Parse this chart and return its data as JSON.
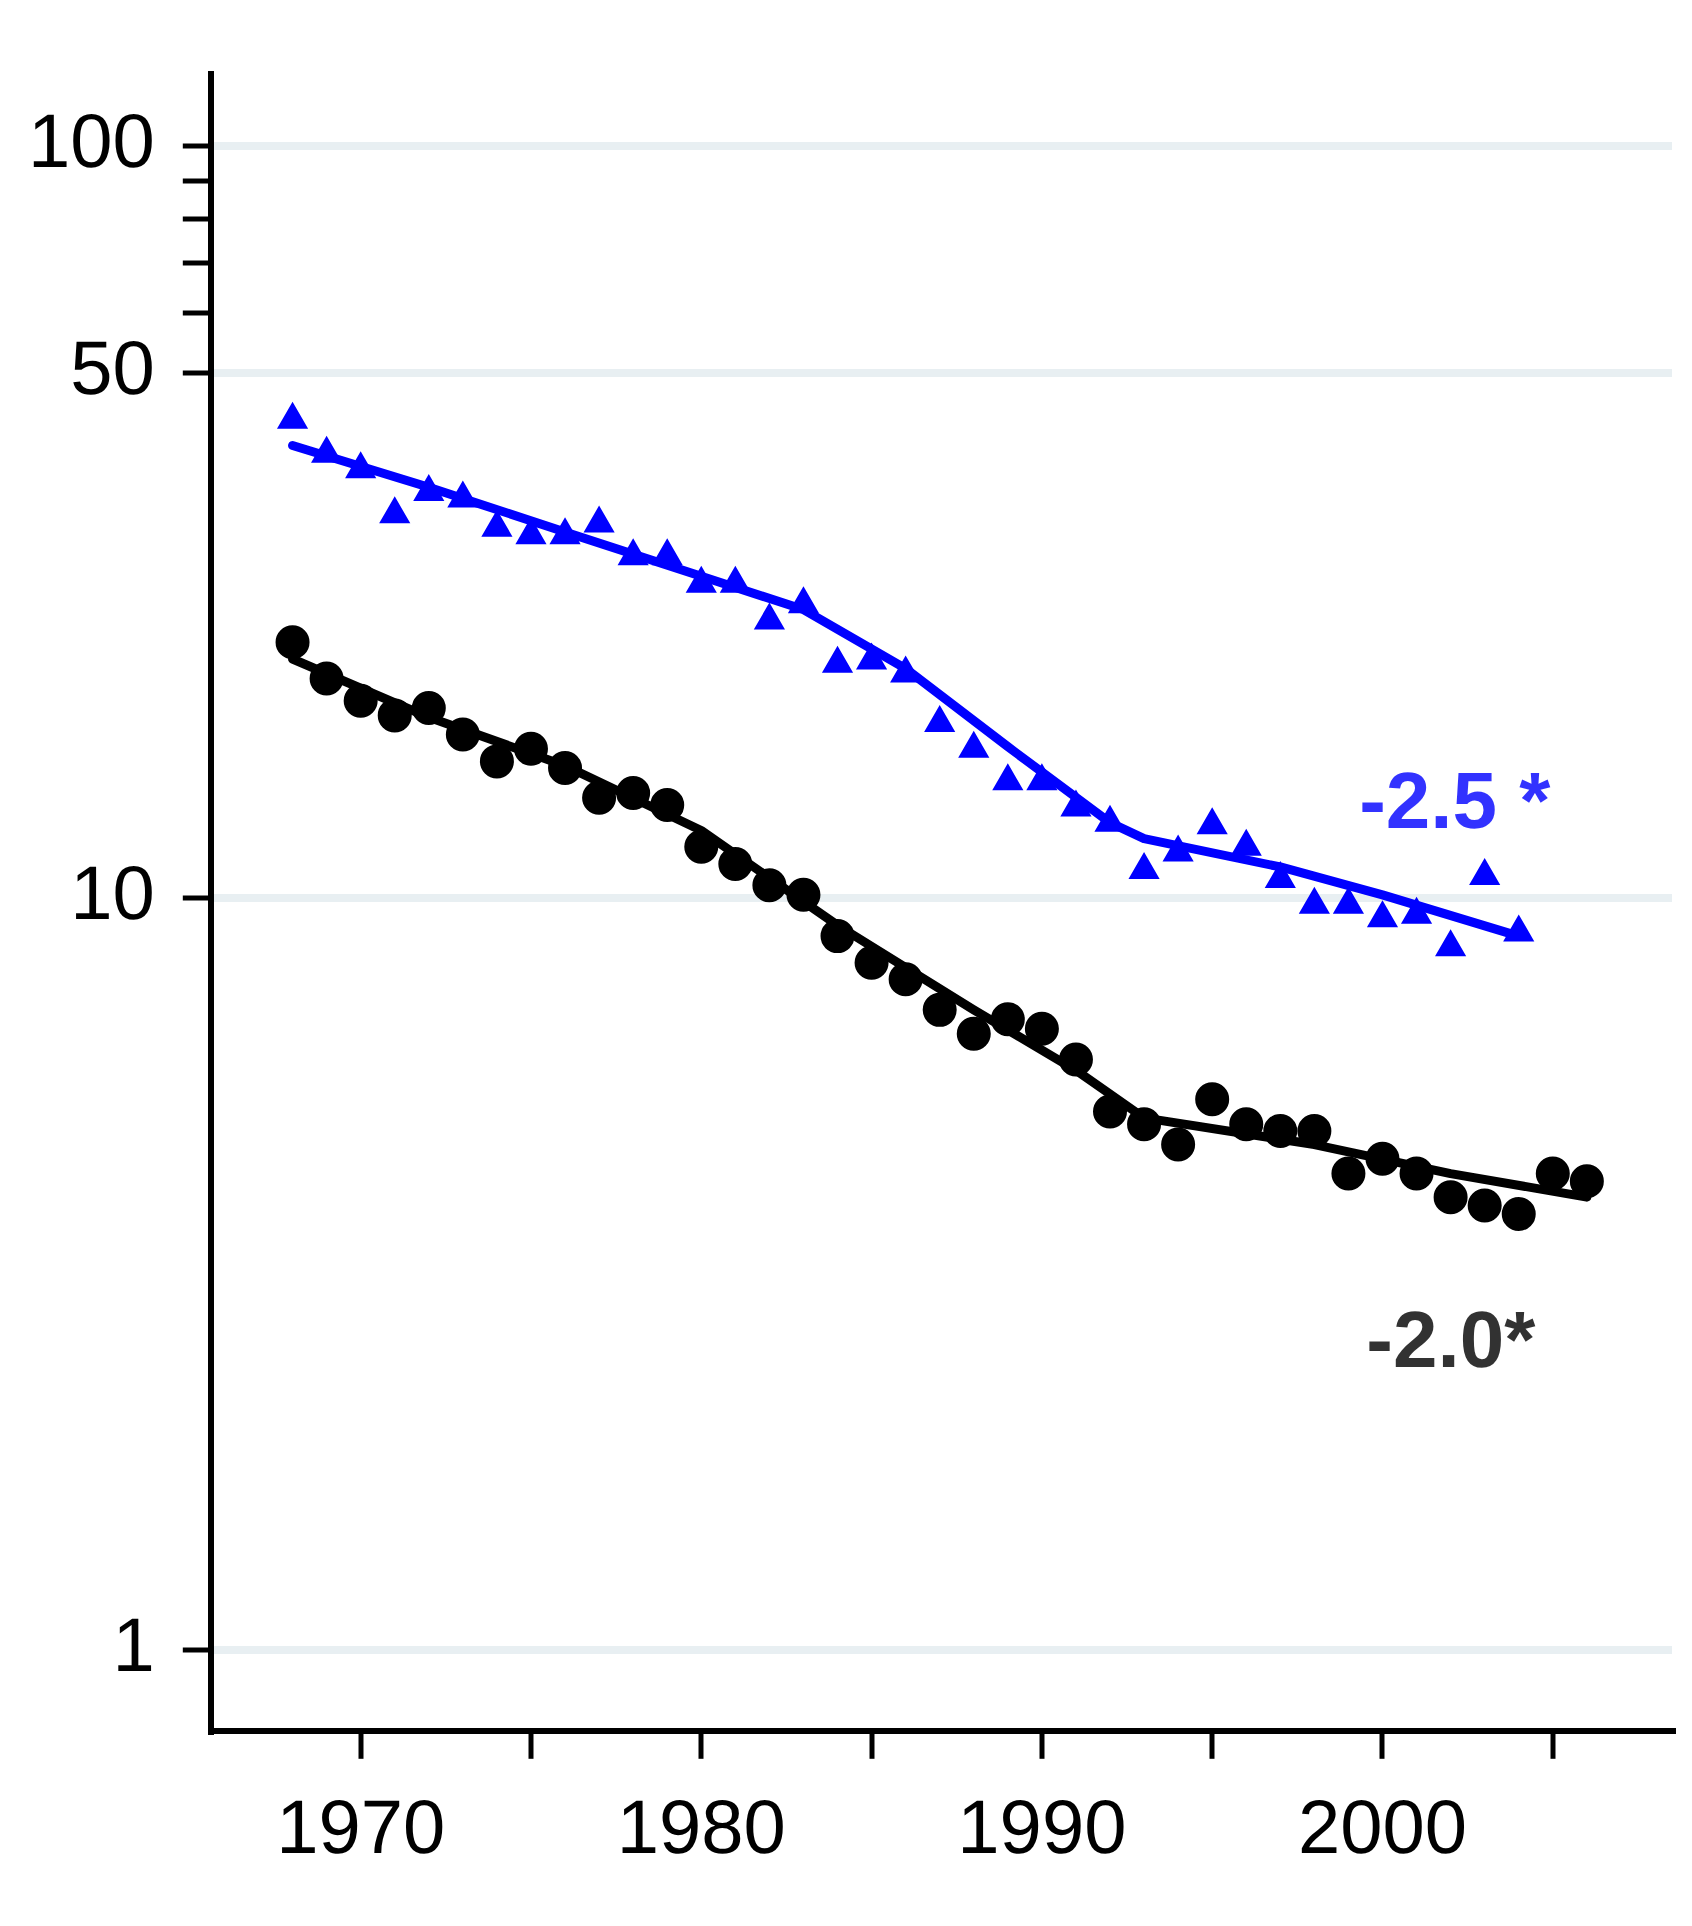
{
  "chart_data": {
    "type": "scatter",
    "log": "y",
    "xlim": [
      1965.6,
      2008.5
    ],
    "ylim": [
      0.78,
      125
    ],
    "xticks": [
      1970,
      {
        "value": 1975,
        "label": null
      },
      1980,
      {
        "value": 1985,
        "label": null
      },
      1990,
      {
        "value": 1995,
        "label": null
      },
      2000,
      {
        "value": 2005,
        "label": null
      }
    ],
    "yticks": [
      1,
      10,
      50,
      {
        "value": 60,
        "label": null
      },
      {
        "value": 70,
        "label": null
      },
      {
        "value": 80,
        "label": null
      },
      {
        "value": 90,
        "label": null
      },
      100
    ],
    "grid": "y",
    "legend": false,
    "annotations": [
      "-2.5 *",
      "-2.0*"
    ],
    "series": [
      {
        "marker": "triangle",
        "color": "#0000ff",
        "x": [
          1968,
          1969,
          1970,
          1971,
          1972,
          1973,
          1974,
          1975,
          1976,
          1977,
          1978,
          1979,
          1980,
          1981,
          1982,
          1983,
          1984,
          1985,
          1986,
          1987,
          1988,
          1989,
          1990,
          1991,
          1992,
          1993,
          1994,
          1995,
          1996,
          1997,
          1998,
          1999,
          2000,
          2001,
          2002,
          2003,
          2004
        ],
        "values": [
          43.3,
          39.0,
          37.2,
          32.4,
          34.7,
          34.0,
          31.1,
          30.4,
          30.4,
          31.5,
          28.5,
          28.5,
          26.2,
          26.2,
          23.4,
          24.6,
          20.5,
          20.7,
          19.9,
          17.1,
          15.8,
          14.3,
          14.3,
          13.2,
          12.6,
          10.9,
          11.5,
          12.5,
          11.7,
          10.6,
          9.8,
          9.8,
          9.4,
          9.5,
          8.6,
          10.7,
          9.0
        ]
      },
      {
        "marker": "circle",
        "color": "#000000",
        "x": [
          1968,
          1969,
          1970,
          1971,
          1972,
          1973,
          1974,
          1975,
          1976,
          1977,
          1978,
          1979,
          1980,
          1981,
          1982,
          1983,
          1984,
          1985,
          1986,
          1987,
          1988,
          1989,
          1990,
          1991,
          1992,
          1993,
          1994,
          1995,
          1996,
          1997,
          1998,
          1999,
          2000,
          2001,
          2002,
          2003,
          2004,
          2005,
          2006
        ],
        "values": [
          21.9,
          19.6,
          18.3,
          17.5,
          17.9,
          16.5,
          15.2,
          15.8,
          14.9,
          13.6,
          13.8,
          13.3,
          11.7,
          11.1,
          10.4,
          10.1,
          8.9,
          8.2,
          7.8,
          7.1,
          6.6,
          6.9,
          6.7,
          6.1,
          5.2,
          5.0,
          4.7,
          5.4,
          5.0,
          4.9,
          4.9,
          4.3,
          4.5,
          4.3,
          4.0,
          3.9,
          3.8,
          4.3,
          4.2
        ]
      },
      {
        "type": "line",
        "marker": "none",
        "color": "#0000ff",
        "x": [
          1968,
          1972,
          1976,
          1980,
          1983,
          1986,
          1989,
          1992,
          1993,
          1997,
          2000,
          2004
        ],
        "values": [
          40.0,
          35.2,
          30.7,
          26.8,
          24.2,
          20.2,
          15.9,
          12.6,
          12.0,
          11.0,
          10.1,
          8.9
        ]
      },
      {
        "type": "line",
        "marker": "none",
        "color": "#000000",
        "x": [
          1968,
          1972,
          1976,
          1980,
          1984,
          1988,
          1991,
          1993,
          1998,
          2002,
          2006
        ],
        "values": [
          20.8,
          17.4,
          15.0,
          12.3,
          9.2,
          7.1,
          5.9,
          5.1,
          4.7,
          4.3,
          4.0
        ]
      }
    ]
  }
}
